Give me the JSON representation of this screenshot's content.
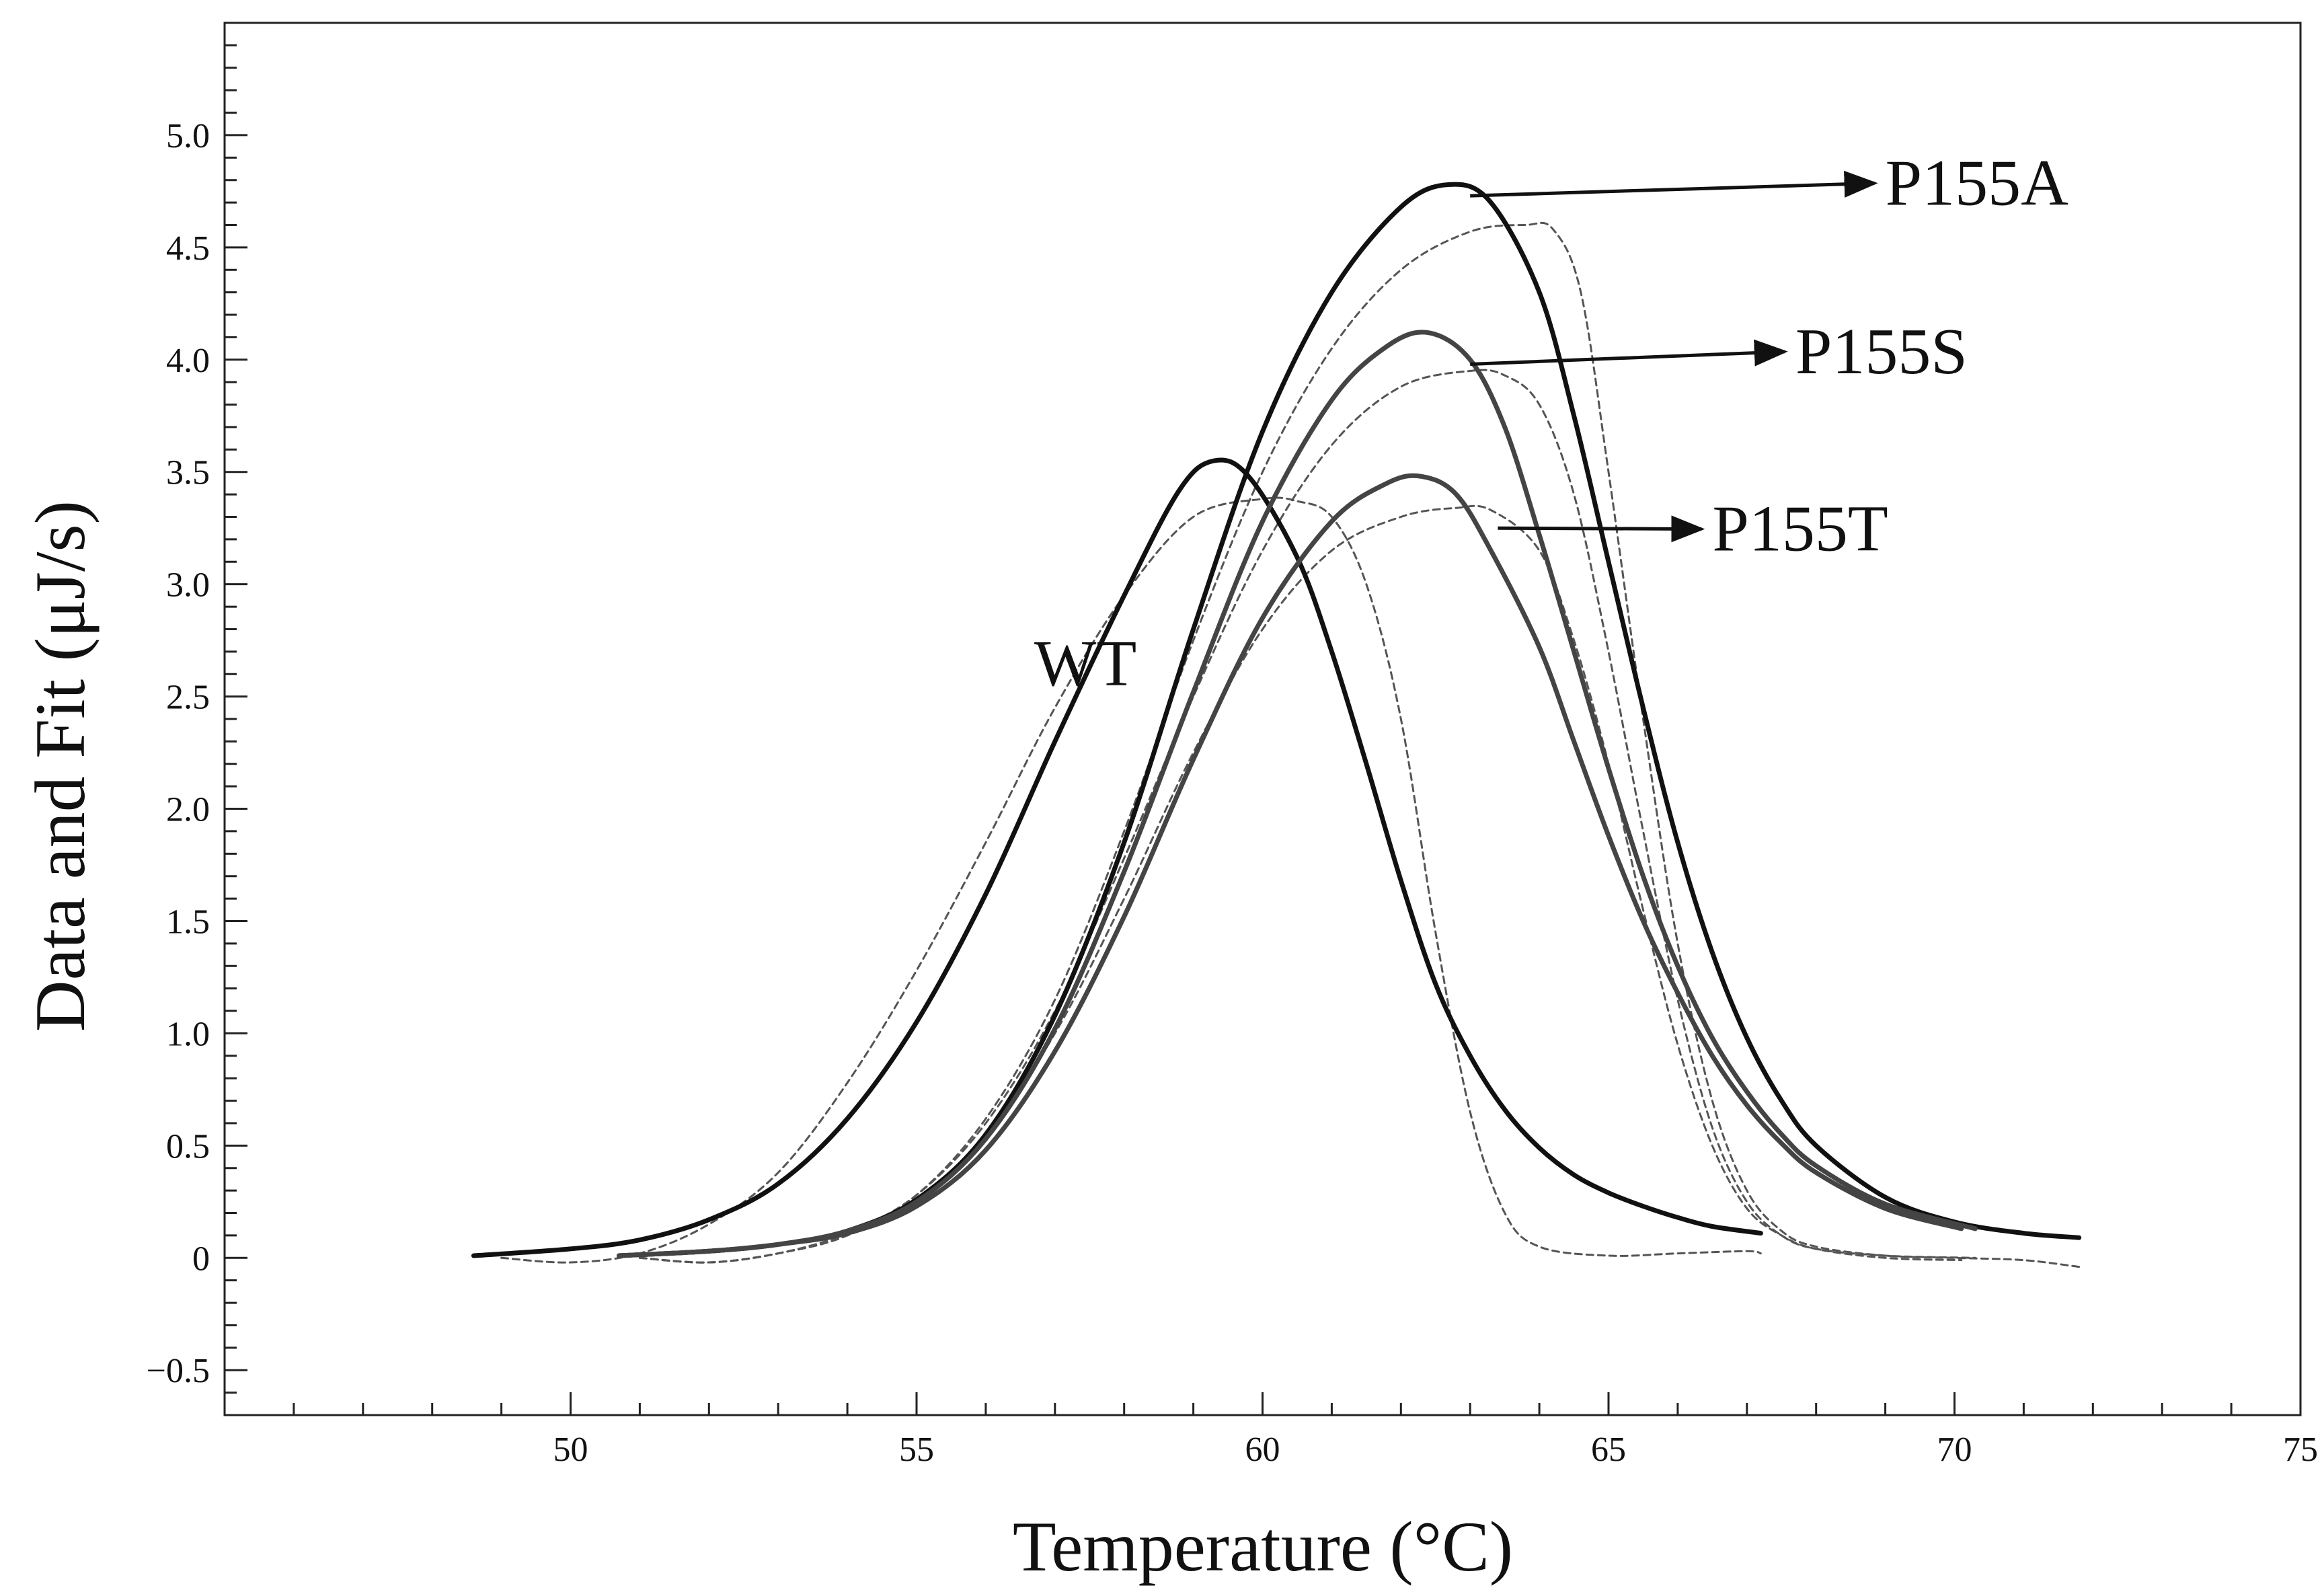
{
  "chart_data": {
    "type": "line",
    "title": "",
    "xlabel": "Temperature (°C)",
    "ylabel": "Data and Fit  (μJ/s)",
    "xlim": [
      45,
      75
    ],
    "ylim": [
      -0.7,
      5.5
    ],
    "grid": false,
    "x_ticks": [
      50,
      55,
      60,
      65,
      70,
      75
    ],
    "x_tick_labels": [
      "50",
      "55",
      "60",
      "65",
      "70",
      "75"
    ],
    "x_minor_step": 1,
    "y_ticks": [
      -0.5,
      0,
      0.5,
      1.0,
      1.5,
      2.0,
      2.5,
      3.0,
      3.5,
      4.0,
      4.5,
      5.0
    ],
    "y_tick_labels": [
      "−0.5",
      "0",
      "0.5",
      "1.0",
      "1.5",
      "2.0",
      "2.5",
      "3.0",
      "3.5",
      "4.0",
      "4.5",
      "5.0"
    ],
    "y_minor_step": 0.1,
    "series": [
      {
        "name": "WT",
        "kind": "fit",
        "color": "#111111",
        "points": [
          [
            48.6,
            0.01
          ],
          [
            50.0,
            0.04
          ],
          [
            51.0,
            0.08
          ],
          [
            52.0,
            0.17
          ],
          [
            53.0,
            0.33
          ],
          [
            54.0,
            0.62
          ],
          [
            55.0,
            1.05
          ],
          [
            56.0,
            1.62
          ],
          [
            57.0,
            2.3
          ],
          [
            58.0,
            2.95
          ],
          [
            58.8,
            3.42
          ],
          [
            59.3,
            3.55
          ],
          [
            59.8,
            3.48
          ],
          [
            60.5,
            3.12
          ],
          [
            61.0,
            2.7
          ],
          [
            61.5,
            2.2
          ],
          [
            62.0,
            1.68
          ],
          [
            62.5,
            1.22
          ],
          [
            63.0,
            0.9
          ],
          [
            63.5,
            0.66
          ],
          [
            64.0,
            0.49
          ],
          [
            64.5,
            0.37
          ],
          [
            65.0,
            0.29
          ],
          [
            65.5,
            0.23
          ],
          [
            66.0,
            0.18
          ],
          [
            66.5,
            0.14
          ],
          [
            67.2,
            0.11
          ]
        ]
      },
      {
        "name": "WT",
        "kind": "data",
        "color": "#555555",
        "points": [
          [
            49.0,
            0.0
          ],
          [
            50.0,
            -0.02
          ],
          [
            51.0,
            0.02
          ],
          [
            52.0,
            0.15
          ],
          [
            53.0,
            0.38
          ],
          [
            54.0,
            0.78
          ],
          [
            55.0,
            1.28
          ],
          [
            56.0,
            1.85
          ],
          [
            57.0,
            2.45
          ],
          [
            58.0,
            2.95
          ],
          [
            59.0,
            3.3
          ],
          [
            60.0,
            3.38
          ],
          [
            60.5,
            3.37
          ],
          [
            61.0,
            3.3
          ],
          [
            61.5,
            3.0
          ],
          [
            62.0,
            2.4
          ],
          [
            62.5,
            1.45
          ],
          [
            63.0,
            0.65
          ],
          [
            63.5,
            0.2
          ],
          [
            64.0,
            0.05
          ],
          [
            65.0,
            0.01
          ],
          [
            66.0,
            0.02
          ],
          [
            67.0,
            0.03
          ],
          [
            67.2,
            0.02
          ]
        ]
      },
      {
        "name": "P155A",
        "kind": "fit",
        "color": "#111111",
        "points": [
          [
            50.7,
            0.01
          ],
          [
            52.0,
            0.03
          ],
          [
            53.0,
            0.06
          ],
          [
            54.0,
            0.12
          ],
          [
            55.0,
            0.26
          ],
          [
            56.0,
            0.55
          ],
          [
            57.0,
            1.08
          ],
          [
            58.0,
            1.85
          ],
          [
            59.0,
            2.8
          ],
          [
            60.0,
            3.68
          ],
          [
            61.0,
            4.3
          ],
          [
            62.0,
            4.68
          ],
          [
            62.7,
            4.78
          ],
          [
            63.3,
            4.7
          ],
          [
            64.0,
            4.3
          ],
          [
            64.5,
            3.75
          ],
          [
            65.0,
            3.1
          ],
          [
            65.5,
            2.45
          ],
          [
            66.0,
            1.85
          ],
          [
            66.5,
            1.36
          ],
          [
            67.0,
            0.98
          ],
          [
            67.5,
            0.7
          ],
          [
            68.0,
            0.5
          ],
          [
            69.0,
            0.27
          ],
          [
            70.0,
            0.16
          ],
          [
            71.0,
            0.11
          ],
          [
            71.8,
            0.09
          ]
        ]
      },
      {
        "name": "P155A",
        "kind": "data",
        "color": "#555555",
        "points": [
          [
            51.0,
            0.0
          ],
          [
            52.0,
            -0.02
          ],
          [
            53.0,
            0.02
          ],
          [
            54.0,
            0.1
          ],
          [
            55.0,
            0.28
          ],
          [
            56.0,
            0.62
          ],
          [
            57.0,
            1.15
          ],
          [
            58.0,
            1.9
          ],
          [
            59.0,
            2.75
          ],
          [
            60.0,
            3.5
          ],
          [
            61.0,
            4.05
          ],
          [
            62.0,
            4.4
          ],
          [
            63.0,
            4.57
          ],
          [
            63.8,
            4.6
          ],
          [
            64.2,
            4.58
          ],
          [
            64.6,
            4.3
          ],
          [
            65.0,
            3.5
          ],
          [
            65.5,
            2.4
          ],
          [
            66.0,
            1.4
          ],
          [
            66.5,
            0.7
          ],
          [
            67.0,
            0.3
          ],
          [
            67.5,
            0.12
          ],
          [
            68.0,
            0.05
          ],
          [
            69.0,
            0.01
          ],
          [
            70.0,
            0.0
          ],
          [
            71.0,
            -0.01
          ],
          [
            71.8,
            -0.04
          ]
        ]
      },
      {
        "name": "P155S",
        "kind": "fit",
        "color": "#444444",
        "points": [
          [
            50.7,
            0.01
          ],
          [
            52.0,
            0.03
          ],
          [
            53.0,
            0.06
          ],
          [
            54.0,
            0.12
          ],
          [
            55.0,
            0.25
          ],
          [
            56.0,
            0.53
          ],
          [
            57.0,
            1.02
          ],
          [
            58.0,
            1.72
          ],
          [
            59.0,
            2.52
          ],
          [
            60.0,
            3.28
          ],
          [
            61.0,
            3.82
          ],
          [
            61.8,
            4.06
          ],
          [
            62.4,
            4.12
          ],
          [
            63.0,
            4.0
          ],
          [
            63.5,
            3.7
          ],
          [
            64.0,
            3.22
          ],
          [
            64.5,
            2.7
          ],
          [
            65.0,
            2.18
          ],
          [
            65.5,
            1.7
          ],
          [
            66.0,
            1.3
          ],
          [
            66.5,
            0.98
          ],
          [
            67.0,
            0.74
          ],
          [
            67.5,
            0.55
          ],
          [
            68.0,
            0.41
          ],
          [
            69.0,
            0.24
          ],
          [
            70.3,
            0.13
          ]
        ]
      },
      {
        "name": "P155S",
        "kind": "data",
        "color": "#555555",
        "points": [
          [
            51.0,
            0.0
          ],
          [
            52.0,
            -0.02
          ],
          [
            53.0,
            0.02
          ],
          [
            54.0,
            0.11
          ],
          [
            55.0,
            0.28
          ],
          [
            56.0,
            0.6
          ],
          [
            57.0,
            1.1
          ],
          [
            58.0,
            1.78
          ],
          [
            59.0,
            2.5
          ],
          [
            60.0,
            3.15
          ],
          [
            61.0,
            3.62
          ],
          [
            62.0,
            3.88
          ],
          [
            63.0,
            3.95
          ],
          [
            63.5,
            3.93
          ],
          [
            64.0,
            3.8
          ],
          [
            64.5,
            3.4
          ],
          [
            65.0,
            2.7
          ],
          [
            65.5,
            1.9
          ],
          [
            66.0,
            1.15
          ],
          [
            66.5,
            0.58
          ],
          [
            67.0,
            0.25
          ],
          [
            67.5,
            0.1
          ],
          [
            68.0,
            0.04
          ],
          [
            69.0,
            0.01
          ],
          [
            70.3,
            0.0
          ]
        ]
      },
      {
        "name": "P155T",
        "kind": "fit",
        "color": "#444444",
        "points": [
          [
            50.7,
            0.01
          ],
          [
            52.0,
            0.03
          ],
          [
            53.0,
            0.06
          ],
          [
            54.0,
            0.11
          ],
          [
            55.0,
            0.23
          ],
          [
            56.0,
            0.48
          ],
          [
            57.0,
            0.92
          ],
          [
            58.0,
            1.52
          ],
          [
            59.0,
            2.22
          ],
          [
            60.0,
            2.85
          ],
          [
            61.0,
            3.28
          ],
          [
            61.8,
            3.45
          ],
          [
            62.3,
            3.48
          ],
          [
            62.8,
            3.4
          ],
          [
            63.3,
            3.15
          ],
          [
            64.0,
            2.72
          ],
          [
            64.5,
            2.3
          ],
          [
            65.0,
            1.88
          ],
          [
            65.5,
            1.5
          ],
          [
            66.0,
            1.18
          ],
          [
            66.5,
            0.9
          ],
          [
            67.0,
            0.68
          ],
          [
            67.5,
            0.51
          ],
          [
            68.0,
            0.38
          ],
          [
            69.0,
            0.22
          ],
          [
            70.1,
            0.13
          ]
        ]
      },
      {
        "name": "P155T",
        "kind": "data",
        "color": "#555555",
        "points": [
          [
            51.0,
            0.0
          ],
          [
            52.0,
            -0.02
          ],
          [
            53.0,
            0.02
          ],
          [
            54.0,
            0.1
          ],
          [
            55.0,
            0.25
          ],
          [
            56.0,
            0.55
          ],
          [
            57.0,
            1.0
          ],
          [
            58.0,
            1.6
          ],
          [
            59.0,
            2.25
          ],
          [
            60.0,
            2.8
          ],
          [
            61.0,
            3.15
          ],
          [
            62.0,
            3.3
          ],
          [
            62.8,
            3.34
          ],
          [
            63.3,
            3.33
          ],
          [
            64.0,
            3.15
          ],
          [
            64.5,
            2.75
          ],
          [
            65.0,
            2.2
          ],
          [
            65.5,
            1.55
          ],
          [
            66.0,
            0.95
          ],
          [
            66.5,
            0.5
          ],
          [
            67.0,
            0.22
          ],
          [
            67.5,
            0.1
          ],
          [
            68.0,
            0.04
          ],
          [
            69.0,
            0.0
          ],
          [
            70.1,
            -0.01
          ]
        ]
      }
    ],
    "annotations": [
      {
        "label": "WT",
        "x": 56.7,
        "y": 2.55,
        "arrow": false
      },
      {
        "label": "P155A",
        "x": 69.0,
        "y": 4.69,
        "arrow": true,
        "from": [
          63.0,
          4.73
        ]
      },
      {
        "label": "P155S",
        "x": 67.7,
        "y": 3.94,
        "arrow": true,
        "from": [
          63.0,
          3.98
        ]
      },
      {
        "label": "P155T",
        "x": 66.5,
        "y": 3.15,
        "arrow": true,
        "from": [
          63.4,
          3.25
        ]
      }
    ]
  }
}
